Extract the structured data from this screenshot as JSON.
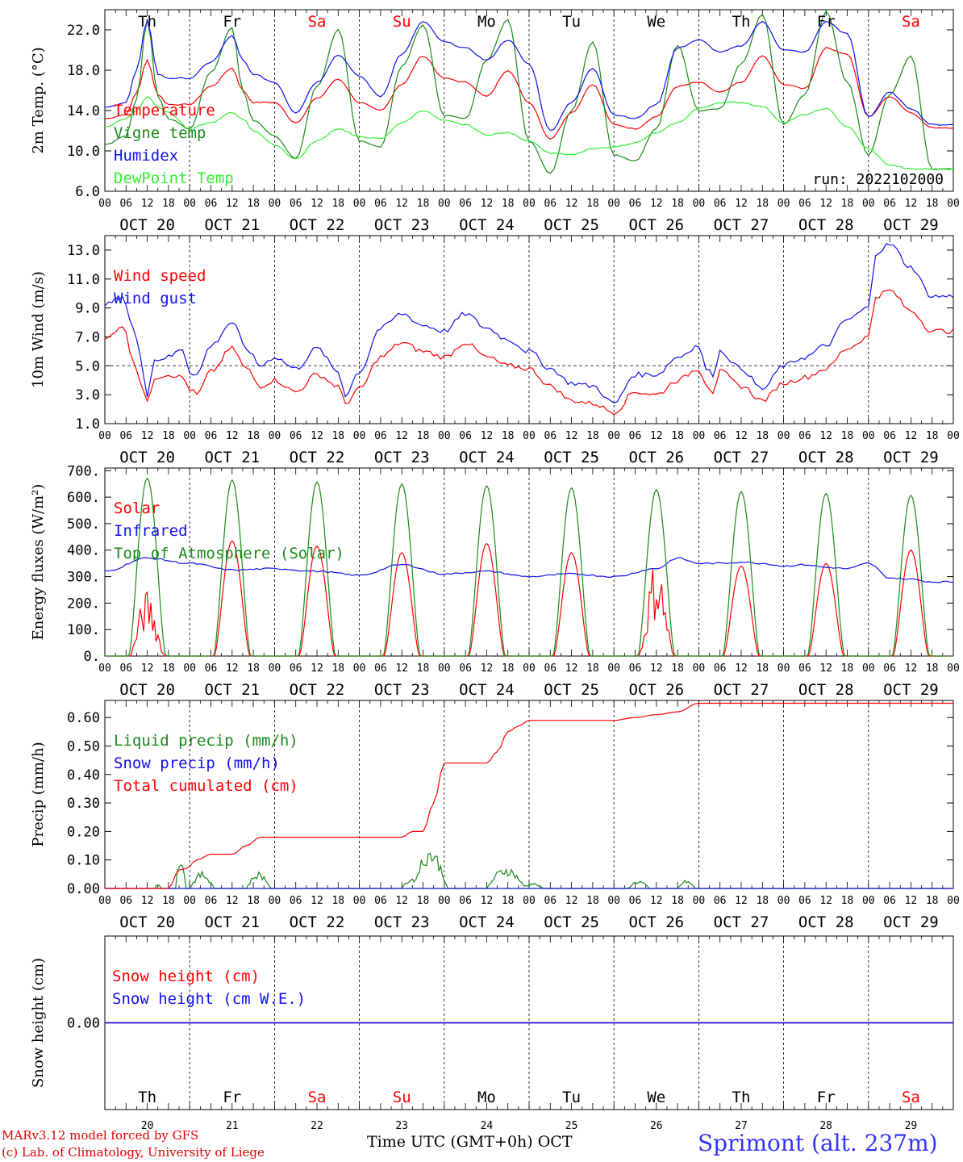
{
  "days": [
    {
      "wd": "Th",
      "num": "20",
      "label": "OCT 20",
      "weekend": false
    },
    {
      "wd": "Fr",
      "num": "21",
      "label": "OCT 21",
      "weekend": false
    },
    {
      "wd": "Sa",
      "num": "22",
      "label": "OCT 22",
      "weekend": true
    },
    {
      "wd": "Su",
      "num": "23",
      "label": "OCT 23",
      "weekend": true
    },
    {
      "wd": "Mo",
      "num": "24",
      "label": "OCT 24",
      "weekend": false
    },
    {
      "wd": "Tu",
      "num": "25",
      "label": "OCT 25",
      "weekend": false
    },
    {
      "wd": "We",
      "num": "26",
      "label": "OCT 26",
      "weekend": false
    },
    {
      "wd": "Th",
      "num": "27",
      "label": "OCT 27",
      "weekend": false
    },
    {
      "wd": "Fr",
      "num": "28",
      "label": "OCT 28",
      "weekend": false
    },
    {
      "wd": "Sa",
      "num": "29",
      "label": "OCT 29",
      "weekend": true
    }
  ],
  "hour_ticks": [
    "00",
    "06",
    "12",
    "18"
  ],
  "colors": {
    "red": "#ff0000",
    "green": "#1a8a1a",
    "blue": "#1010ee",
    "lightgreen": "#33ee33",
    "purple": "#7a3a9a",
    "weekend": "#ff0000"
  },
  "footer": {
    "credit1": "MARv3.12 model forced by GFS",
    "credit2": "(c) Lab. of Climatology, University of Liege",
    "xtitle": "Time UTC (GMT+0h) OCT",
    "station": "Sprimont (alt. 237m)"
  },
  "chart_data": [
    {
      "id": "temperature",
      "type": "line",
      "ylabel": "2m Temp. (°C)",
      "ylim": [
        6,
        24
      ],
      "yticks": [
        "6.0",
        "10.0",
        "14.0",
        "18.0",
        "22.0"
      ],
      "yticks_values": [
        6,
        10,
        14,
        18,
        22
      ],
      "x_unit": "hours since 2022-10-20 00 UTC",
      "annotation": "run: 2022102000",
      "series": [
        {
          "name": "Temperature",
          "color": "#ff0000",
          "x": [
            0,
            6,
            9,
            12,
            15,
            18,
            24,
            30,
            36,
            39,
            42,
            48,
            54,
            60,
            66,
            72,
            78,
            84,
            90,
            96,
            102,
            108,
            114,
            120,
            126,
            132,
            138,
            144,
            150,
            156,
            162,
            168,
            174,
            180,
            186,
            192,
            198,
            204,
            210,
            216,
            222,
            228,
            234
          ],
          "values": [
            13.2,
            13.6,
            15.8,
            19.0,
            15.6,
            14.6,
            14.6,
            16.4,
            18.2,
            16.0,
            14.8,
            14.8,
            12.8,
            15.2,
            17.1,
            14.8,
            14.0,
            16.6,
            19.4,
            17.2,
            16.8,
            15.4,
            18.0,
            14.8,
            11.2,
            13.8,
            16.6,
            12.6,
            12.2,
            13.4,
            16.4,
            16.8,
            15.8,
            16.8,
            19.4,
            16.6,
            16.2,
            20.2,
            19.6,
            13.4,
            15.4,
            13.8,
            12.3
          ]
        },
        {
          "name": "Vigne temp",
          "color": "#1a8a1a",
          "x": [
            0,
            6,
            9,
            12,
            15,
            18,
            24,
            30,
            36,
            39,
            42,
            48,
            54,
            60,
            66,
            72,
            78,
            84,
            90,
            96,
            102,
            108,
            114,
            120,
            126,
            132,
            138,
            144,
            150,
            156,
            162,
            168,
            174,
            180,
            186,
            192,
            198,
            204,
            210,
            216,
            222,
            228,
            234
          ],
          "values": [
            10.6,
            11.5,
            15.2,
            23.0,
            15.4,
            13.2,
            12.2,
            17.8,
            22.2,
            16.0,
            13.0,
            11.5,
            9.2,
            16.4,
            22.0,
            11.0,
            10.4,
            18.4,
            22.5,
            13.5,
            13.2,
            19.0,
            23.0,
            11.0,
            7.8,
            14.0,
            20.8,
            9.6,
            9.0,
            12.2,
            20.5,
            14.0,
            14.2,
            18.6,
            23.5,
            12.6,
            15.6,
            23.8,
            16.8,
            9.6,
            15.6,
            19.4,
            8.2
          ]
        },
        {
          "name": "Humidex",
          "color": "#1010ee",
          "x": [
            0,
            6,
            9,
            12,
            15,
            18,
            24,
            30,
            36,
            39,
            42,
            48,
            54,
            60,
            66,
            72,
            78,
            84,
            90,
            96,
            102,
            108,
            114,
            120,
            126,
            132,
            138,
            144,
            150,
            156,
            162,
            168,
            174,
            180,
            186,
            192,
            198,
            204,
            210,
            216,
            222,
            228,
            234
          ],
          "values": [
            14.3,
            14.8,
            18.0,
            23.0,
            17.6,
            17.2,
            17.2,
            18.8,
            21.4,
            19.0,
            17.6,
            16.8,
            13.8,
            16.8,
            19.5,
            17.4,
            15.4,
            19.6,
            22.8,
            20.8,
            20.2,
            19.0,
            21.0,
            18.6,
            12.0,
            14.8,
            18.2,
            13.6,
            13.2,
            14.6,
            20.2,
            21.0,
            19.8,
            20.4,
            22.8,
            20.0,
            19.8,
            22.8,
            21.6,
            13.4,
            15.8,
            14.2,
            12.6
          ]
        },
        {
          "name": "DewPoint Temp",
          "color": "#33ee33",
          "x": [
            0,
            6,
            9,
            12,
            15,
            18,
            24,
            30,
            36,
            39,
            42,
            48,
            54,
            60,
            66,
            72,
            78,
            84,
            90,
            96,
            102,
            108,
            114,
            120,
            126,
            132,
            138,
            144,
            150,
            156,
            162,
            168,
            174,
            180,
            186,
            192,
            198,
            204,
            210,
            216,
            222,
            228,
            234
          ],
          "values": [
            12.4,
            13.2,
            14.0,
            15.4,
            14.4,
            13.8,
            12.2,
            12.8,
            13.8,
            13.2,
            12.0,
            10.6,
            9.2,
            11.0,
            12.2,
            11.4,
            11.2,
            12.8,
            14.0,
            13.0,
            12.6,
            11.6,
            11.8,
            11.0,
            9.8,
            9.6,
            10.2,
            10.4,
            10.8,
            11.8,
            12.8,
            14.2,
            14.8,
            14.8,
            14.4,
            12.8,
            13.6,
            14.2,
            12.4,
            10.2,
            8.6,
            8.2,
            8.2
          ]
        }
      ]
    },
    {
      "id": "wind",
      "type": "line",
      "ylabel": "10m Wind (m/s)",
      "ylim": [
        1,
        14
      ],
      "yticks": [
        "1.0",
        "3.0",
        "5.0",
        "7.0",
        "9.0",
        "11.0",
        "13.0"
      ],
      "yticks_values": [
        1,
        3,
        5,
        7,
        9,
        11,
        13
      ],
      "reference_line": 5,
      "x_unit": "hours since 2022-10-20 00 UTC",
      "series": [
        {
          "name": "Wind speed",
          "color": "#ff0000",
          "x": [
            0,
            5,
            8,
            10,
            12,
            14,
            18,
            22,
            24,
            26,
            30,
            36,
            40,
            44,
            48,
            54,
            60,
            66,
            68,
            72,
            78,
            84,
            90,
            96,
            102,
            108,
            114,
            120,
            126,
            132,
            138,
            144,
            150,
            156,
            162,
            168,
            170,
            172,
            174,
            180,
            186,
            192,
            198,
            204,
            210,
            216,
            218,
            222,
            228,
            234
          ],
          "values": [
            6.8,
            7.8,
            5.5,
            4.0,
            2.4,
            4.2,
            4.4,
            4.2,
            3.4,
            3.0,
            4.6,
            6.2,
            4.8,
            3.6,
            4.0,
            3.2,
            4.4,
            3.6,
            2.4,
            3.4,
            5.6,
            6.6,
            6.0,
            5.6,
            6.6,
            5.6,
            5.0,
            4.8,
            3.6,
            2.6,
            2.4,
            1.8,
            3.2,
            3.0,
            4.0,
            4.8,
            3.8,
            3.2,
            4.6,
            3.6,
            2.6,
            3.8,
            4.2,
            4.8,
            6.2,
            7.0,
            9.8,
            10.2,
            8.8,
            7.4
          ]
        },
        {
          "name": "Wind gust",
          "color": "#1010ee",
          "x": [
            0,
            5,
            8,
            10,
            12,
            14,
            18,
            22,
            24,
            26,
            30,
            36,
            40,
            44,
            48,
            54,
            60,
            66,
            68,
            72,
            78,
            84,
            90,
            96,
            102,
            108,
            114,
            120,
            126,
            132,
            138,
            144,
            150,
            156,
            162,
            168,
            170,
            172,
            174,
            180,
            186,
            192,
            198,
            204,
            210,
            216,
            218,
            222,
            228,
            234
          ],
          "values": [
            9.2,
            9.8,
            7.6,
            5.8,
            3.0,
            5.4,
            5.6,
            6.2,
            4.6,
            4.4,
            6.4,
            8.0,
            6.2,
            5.0,
            5.6,
            4.8,
            6.2,
            4.6,
            3.0,
            4.6,
            7.6,
            8.6,
            7.8,
            7.4,
            8.6,
            7.6,
            6.8,
            6.0,
            4.8,
            3.8,
            3.6,
            2.4,
            4.4,
            4.4,
            5.6,
            6.4,
            4.8,
            4.4,
            6.0,
            4.8,
            3.4,
            5.0,
            5.6,
            6.4,
            8.2,
            9.0,
            12.8,
            13.4,
            11.8,
            9.8
          ]
        }
      ]
    },
    {
      "id": "energy",
      "type": "line",
      "ylabel": "Energy fluxes (W/m²)",
      "ylim": [
        0,
        710
      ],
      "yticks": [
        "0.",
        "100.",
        "200.",
        "300.",
        "400.",
        "500.",
        "600.",
        "700."
      ],
      "yticks_values": [
        0,
        100,
        200,
        300,
        400,
        500,
        600,
        700
      ],
      "x_unit": "hours since 2022-10-20 00 UTC",
      "series": [
        {
          "name": "Solar",
          "color": "#ff0000",
          "peaks": [
            250,
            435,
            415,
            390,
            425,
            390,
            375,
            340,
            350,
            400
          ],
          "daylight_hours": [
            7,
            17
          ]
        },
        {
          "name": "Infrared",
          "color": "#1010ee",
          "x": [
            0,
            12,
            24,
            36,
            48,
            60,
            72,
            84,
            96,
            108,
            120,
            132,
            144,
            156,
            162,
            168,
            174,
            180,
            186,
            192,
            198,
            204,
            210,
            216,
            222,
            228,
            234
          ],
          "values": [
            320,
            370,
            350,
            325,
            330,
            320,
            305,
            345,
            310,
            320,
            300,
            310,
            300,
            330,
            370,
            350,
            350,
            355,
            350,
            340,
            345,
            335,
            330,
            350,
            295,
            290,
            280
          ]
        },
        {
          "name": "Top of Atmosphere (Solar)",
          "color": "#1a8a1a",
          "peaks": [
            672,
            665,
            658,
            650,
            643,
            635,
            628,
            621,
            614,
            607
          ],
          "daylight_hours": [
            6.8,
            17.2
          ]
        }
      ]
    },
    {
      "id": "precip",
      "type": "line",
      "ylabel": "Precip (mm/h)",
      "ylim": [
        0,
        0.66
      ],
      "yticks": [
        "0.00",
        "0.10",
        "0.20",
        "0.30",
        "0.40",
        "0.50",
        "0.60"
      ],
      "yticks_values": [
        0,
        0.1,
        0.2,
        0.3,
        0.4,
        0.5,
        0.6
      ],
      "x_unit": "hours since 2022-10-20 00 UTC",
      "series": [
        {
          "name": "Liquid precip (mm/h)",
          "color": "#1a8a1a",
          "bursts": [
            [
              14,
              16,
              0.02
            ],
            [
              20,
              23,
              0.15
            ],
            [
              24,
              31,
              0.06
            ],
            [
              40,
              47,
              0.06
            ],
            [
              84,
              90,
              0.04
            ],
            [
              87,
              97,
              0.15
            ],
            [
              108,
              119,
              0.08
            ],
            [
              118,
              124,
              0.02
            ],
            [
              148,
              154,
              0.03
            ],
            [
              162,
              167,
              0.03
            ]
          ]
        },
        {
          "name": "Snow precip (mm/h)",
          "color": "#1010ee",
          "x": [
            0,
            240
          ],
          "values": [
            0,
            0
          ]
        },
        {
          "name": "Total cumulated (cm)",
          "color": "#ff0000",
          "x": [
            0,
            18,
            21,
            23,
            26,
            30,
            36,
            40,
            44,
            48,
            60,
            72,
            84,
            87,
            90,
            93,
            96,
            108,
            111,
            114,
            117,
            120,
            132,
            144,
            150,
            156,
            162,
            168,
            174,
            240
          ],
          "values": [
            0,
            0,
            0.065,
            0.07,
            0.1,
            0.12,
            0.12,
            0.15,
            0.18,
            0.18,
            0.18,
            0.18,
            0.18,
            0.2,
            0.2,
            0.3,
            0.44,
            0.44,
            0.48,
            0.55,
            0.57,
            0.59,
            0.59,
            0.59,
            0.6,
            0.61,
            0.62,
            0.65,
            0.65,
            0.65
          ]
        }
      ]
    },
    {
      "id": "snow",
      "type": "line",
      "ylabel": "Snow height (cm)",
      "ylim": [
        -1,
        1
      ],
      "yticks": [
        "0.00"
      ],
      "yticks_values": [
        0
      ],
      "x_unit": "hours since 2022-10-20 00 UTC",
      "series": [
        {
          "name": "Snow height (cm)",
          "color": "#ff0000",
          "x": [
            0,
            240
          ],
          "values": [
            0,
            0
          ]
        },
        {
          "name": "Snow height (cm W.E.)",
          "color": "#1010ee",
          "x": [
            0,
            240
          ],
          "values": [
            0,
            0
          ]
        }
      ]
    }
  ]
}
